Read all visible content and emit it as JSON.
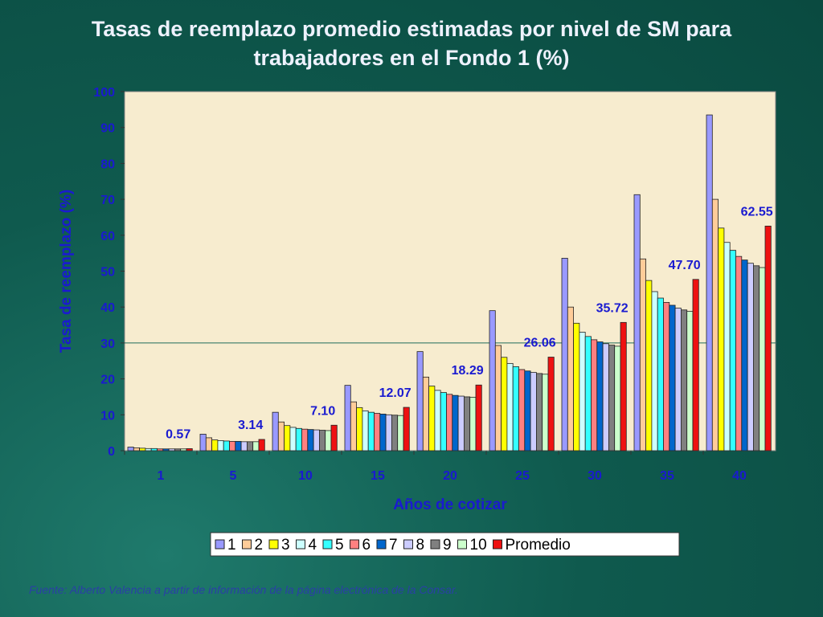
{
  "title_line1": "Tasas de reemplazo promedio estimadas por nivel de SM para",
  "title_line2": "trabajadores en el Fondo 1 (%)",
  "source": "Fuente: Alberto Valencia a partir de información de la página electrónica de la Consar.",
  "chart_data": {
    "type": "bar",
    "xlabel": "Años de cotizar",
    "ylabel": "Tasa de reemplazo (%)",
    "ylim": [
      0,
      100
    ],
    "yticks": [
      0,
      10,
      20,
      30,
      40,
      50,
      60,
      70,
      80,
      90,
      100
    ],
    "categories": [
      "1",
      "5",
      "10",
      "15",
      "20",
      "25",
      "30",
      "35",
      "40"
    ],
    "grid": false,
    "reference_line": 30,
    "legend_position": "bottom",
    "series": [
      {
        "name": "1",
        "color": "#9999ff",
        "values": [
          1.0,
          4.6,
          10.7,
          18.2,
          27.6,
          39.0,
          53.6,
          71.3,
          93.5
        ]
      },
      {
        "name": "2",
        "color": "#ffcc99",
        "values": [
          0.8,
          3.6,
          8.0,
          13.6,
          20.5,
          29.3,
          40.0,
          53.4,
          70.0
        ]
      },
      {
        "name": "3",
        "color": "#ffff00",
        "values": [
          0.7,
          3.0,
          7.0,
          12.0,
          18.0,
          26.0,
          35.5,
          47.4,
          62.0
        ]
      },
      {
        "name": "4",
        "color": "#ccffff",
        "values": [
          0.6,
          2.8,
          6.5,
          11.1,
          16.8,
          24.3,
          33.0,
          44.3,
          58.0
        ]
      },
      {
        "name": "5",
        "color": "#33ffff",
        "values": [
          0.6,
          2.7,
          6.2,
          10.7,
          16.2,
          23.4,
          31.8,
          42.5,
          55.8
        ]
      },
      {
        "name": "6",
        "color": "#ff8080",
        "values": [
          0.5,
          2.6,
          6.0,
          10.4,
          15.7,
          22.6,
          30.9,
          41.3,
          54.1
        ]
      },
      {
        "name": "7",
        "color": "#0066cc",
        "values": [
          0.5,
          2.6,
          5.9,
          10.2,
          15.4,
          22.2,
          30.3,
          40.5,
          53.1
        ]
      },
      {
        "name": "8",
        "color": "#ccccff",
        "values": [
          0.5,
          2.5,
          5.8,
          10.0,
          15.2,
          21.8,
          29.8,
          39.7,
          52.2
        ]
      },
      {
        "name": "9",
        "color": "#808080",
        "values": [
          0.5,
          2.5,
          5.7,
          9.9,
          15.0,
          21.5,
          29.4,
          39.2,
          51.5
        ]
      },
      {
        "name": "10",
        "color": "#ccffcc",
        "values": [
          0.5,
          2.5,
          5.6,
          9.8,
          14.9,
          21.3,
          29.1,
          38.8,
          51.0
        ]
      },
      {
        "name": "Promedio",
        "color": "#ee1111",
        "values": [
          0.57,
          3.14,
          7.1,
          12.07,
          18.29,
          26.06,
          35.72,
          47.7,
          62.55
        ],
        "labels": [
          "0.57",
          "3.14",
          "7.10",
          "12.07",
          "18.29",
          "26.06",
          "35.72",
          "47.70",
          "62.55"
        ]
      }
    ]
  }
}
